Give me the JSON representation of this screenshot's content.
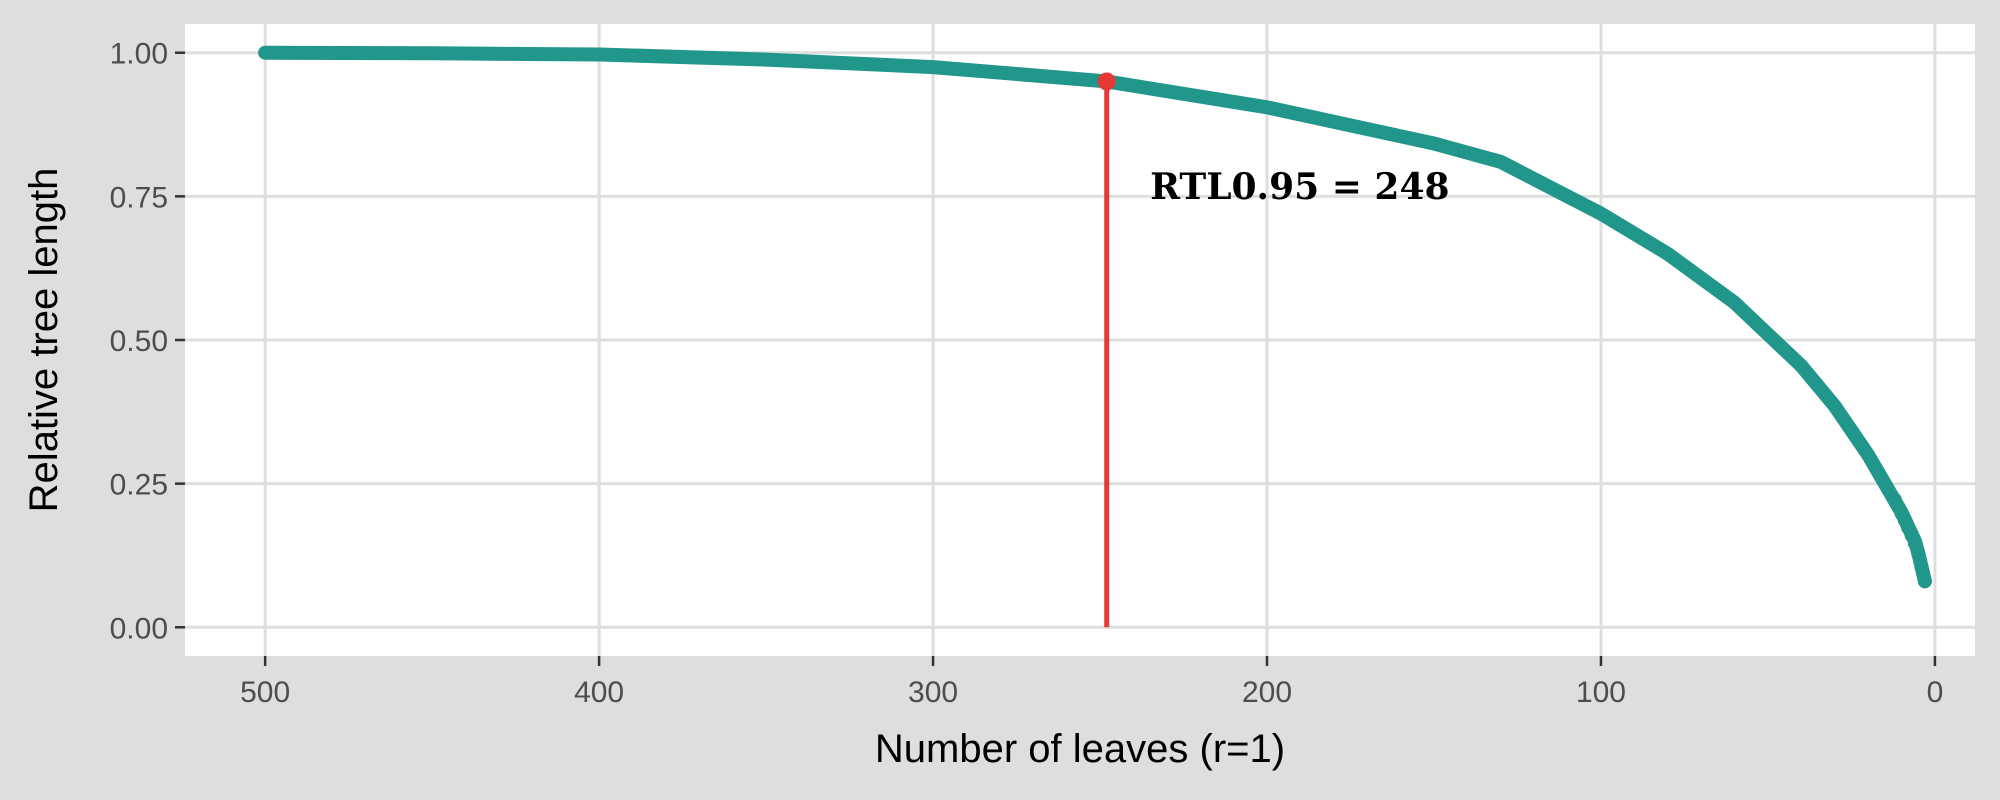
{
  "chart_data": {
    "type": "scatter",
    "title": "",
    "xlabel": "Number of leaves (r=1)",
    "ylabel": "Relative tree length",
    "xlim": [
      524,
      -12
    ],
    "ylim": [
      -0.05,
      1.05
    ],
    "x_reversed": true,
    "grid": true,
    "legend": "none",
    "x_ticks": [
      500,
      400,
      300,
      200,
      100,
      0
    ],
    "x_tick_labels": [
      "500",
      "400",
      "300",
      "200",
      "100",
      "0"
    ],
    "y_ticks": [
      0.0,
      0.25,
      0.5,
      0.75,
      1.0
    ],
    "y_tick_labels": [
      "0.00",
      "0.25",
      "0.50",
      "0.75",
      "1.00"
    ],
    "curve_points": [
      {
        "x": 500,
        "y": 1.0
      },
      {
        "x": 450,
        "y": 0.999
      },
      {
        "x": 400,
        "y": 0.997
      },
      {
        "x": 350,
        "y": 0.988
      },
      {
        "x": 300,
        "y": 0.975
      },
      {
        "x": 248,
        "y": 0.95
      },
      {
        "x": 200,
        "y": 0.905
      },
      {
        "x": 150,
        "y": 0.842
      },
      {
        "x": 130,
        "y": 0.81
      },
      {
        "x": 100,
        "y": 0.72
      },
      {
        "x": 80,
        "y": 0.65
      },
      {
        "x": 60,
        "y": 0.565
      },
      {
        "x": 40,
        "y": 0.455
      },
      {
        "x": 30,
        "y": 0.385
      },
      {
        "x": 20,
        "y": 0.3
      },
      {
        "x": 15,
        "y": 0.25
      },
      {
        "x": 10,
        "y": 0.2
      },
      {
        "x": 8,
        "y": 0.175
      },
      {
        "x": 6,
        "y": 0.15
      },
      {
        "x": 5,
        "y": 0.13
      },
      {
        "x": 4,
        "y": 0.105
      },
      {
        "x": 3,
        "y": 0.08
      }
    ],
    "tail_points": [
      {
        "x": 12,
        "y": 0.222
      },
      {
        "x": 11,
        "y": 0.21
      },
      {
        "x": 10,
        "y": 0.198
      },
      {
        "x": 9,
        "y": 0.186
      },
      {
        "x": 8,
        "y": 0.173
      },
      {
        "x": 7,
        "y": 0.16
      },
      {
        "x": 6,
        "y": 0.146
      },
      {
        "x": 5,
        "y": 0.128
      },
      {
        "x": 4,
        "y": 0.105
      },
      {
        "x": 3,
        "y": 0.08
      }
    ],
    "highlight": {
      "x": 248,
      "y": 0.95
    },
    "annotation": "RTL0.95 = 248",
    "annotation_pos": {
      "x": 235,
      "y": 0.745
    },
    "colors": {
      "curve": "#21968b",
      "highlight": "#e53935",
      "panel": "#ffffff",
      "background": "#dedede",
      "grid": "#dedede",
      "axis": "#333333"
    }
  }
}
